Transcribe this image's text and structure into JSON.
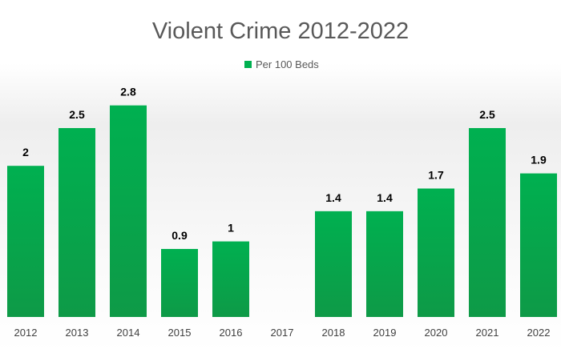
{
  "chart_data": {
    "type": "bar",
    "title": "Violent Crime 2012-2022",
    "xlabel": "",
    "ylabel": "",
    "categories": [
      "2012",
      "2013",
      "2014",
      "2015",
      "2016",
      "2017",
      "2018",
      "2019",
      "2020",
      "2021",
      "2022"
    ],
    "series": [
      {
        "name": "Per 100 Beds",
        "values": [
          2,
          2.5,
          2.8,
          0.9,
          1,
          null,
          1.4,
          1.4,
          1.7,
          2.5,
          1.9
        ],
        "labels": [
          "2",
          "2.5",
          "2.8",
          "0.9",
          "1",
          "",
          "1.4",
          "1.4",
          "1.7",
          "2.5",
          "1.9"
        ]
      }
    ],
    "ylim": [
      0,
      3
    ],
    "grid": false,
    "legend_position": "top",
    "colors": {
      "bar_top": "#00b050",
      "bar_bottom": "#0e9a47",
      "legend_swatch": "#00b050"
    }
  }
}
